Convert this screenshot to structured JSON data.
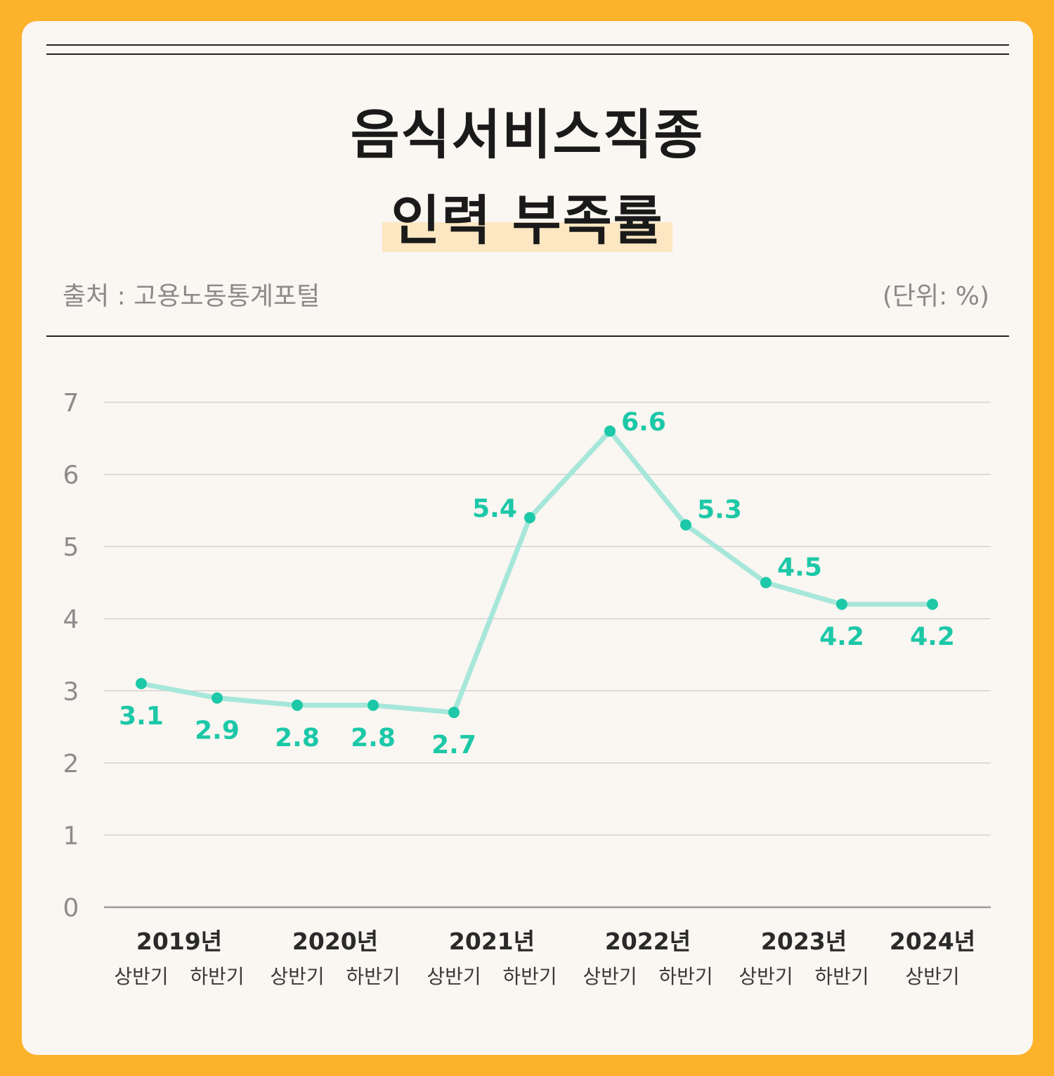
{
  "title": {
    "line1": "음식서비스직종",
    "line2": "인력 부족률"
  },
  "source": "출처 : 고용노동통계포털",
  "unit": "(단위: %)",
  "colors": {
    "background": "#FDB22C",
    "card": "#FAF6F1",
    "line": "#A6E7DA",
    "point": "#1CC8A8",
    "label": "#1CC8A8",
    "highlight": "#FDE6C2"
  },
  "chart_data": {
    "type": "line",
    "ylim": [
      0,
      7
    ],
    "yticks": [
      "0",
      "1",
      "2",
      "3",
      "4",
      "5",
      "6",
      "7"
    ],
    "grid": true,
    "years": [
      {
        "label": "2019년",
        "span": [
          0,
          1
        ]
      },
      {
        "label": "2020년",
        "span": [
          2,
          3
        ]
      },
      {
        "label": "2021년",
        "span": [
          4,
          5
        ]
      },
      {
        "label": "2022년",
        "span": [
          6,
          7
        ]
      },
      {
        "label": "2023년",
        "span": [
          8,
          9
        ]
      },
      {
        "label": "2024년",
        "span": [
          10,
          10
        ]
      }
    ],
    "categories": [
      "상반기",
      "하반기",
      "상반기",
      "하반기",
      "상반기",
      "하반기",
      "상반기",
      "하반기",
      "상반기",
      "하반기",
      "상반기"
    ],
    "values": [
      3.1,
      2.9,
      2.8,
      2.8,
      2.7,
      5.4,
      6.6,
      5.3,
      4.5,
      4.2,
      4.2
    ],
    "value_labels": [
      "3.1",
      "2.9",
      "2.8",
      "2.8",
      "2.7",
      "5.4",
      "6.6",
      "5.3",
      "4.5",
      "4.2",
      "4.2"
    ]
  }
}
